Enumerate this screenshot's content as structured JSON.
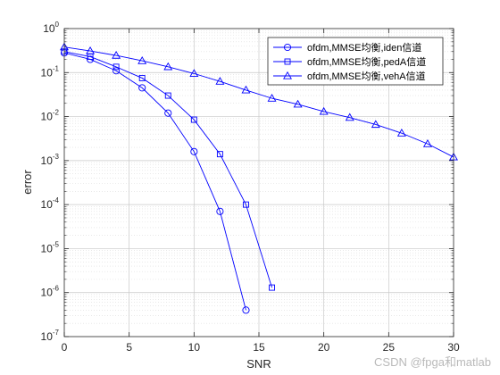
{
  "chart_data": {
    "type": "line",
    "xlabel": "SNR",
    "ylabel": "error",
    "xlim": [
      0,
      30
    ],
    "ylim": [
      1e-07,
      1
    ],
    "yscale": "log",
    "x_ticks": [
      0,
      5,
      10,
      15,
      20,
      25,
      30
    ],
    "y_tick_exponents": [
      -7,
      -6,
      -5,
      -4,
      -3,
      -2,
      -1,
      0
    ],
    "grid": true,
    "minor_grid": true,
    "legend_position": "top-right",
    "color": "#0000ff",
    "series": [
      {
        "name": "ofdm,MMSE均衡,iden信道",
        "marker": "circle",
        "x": [
          0,
          2,
          4,
          6,
          8,
          10,
          12,
          14
        ],
        "y": [
          0.28,
          0.2,
          0.11,
          0.045,
          0.012,
          0.0016,
          7e-05,
          4e-07
        ]
      },
      {
        "name": "ofdm,MMSE均衡,pedA信道",
        "marker": "square",
        "x": [
          0,
          2,
          4,
          6,
          8,
          10,
          12,
          14,
          16
        ],
        "y": [
          0.3,
          0.23,
          0.135,
          0.075,
          0.03,
          0.0085,
          0.0014,
          0.0001,
          1.3e-06
        ]
      },
      {
        "name": "ofdm,MMSE均衡,vehA信道",
        "marker": "triangle",
        "x": [
          0,
          2,
          4,
          6,
          8,
          10,
          12,
          14,
          16,
          18,
          20,
          22,
          24,
          26,
          28,
          30
        ],
        "y": [
          0.38,
          0.31,
          0.245,
          0.185,
          0.135,
          0.095,
          0.063,
          0.04,
          0.026,
          0.019,
          0.013,
          0.0095,
          0.0066,
          0.0042,
          0.0024,
          0.0012
        ]
      }
    ]
  },
  "watermark": "CSDN @fpga和matlab"
}
